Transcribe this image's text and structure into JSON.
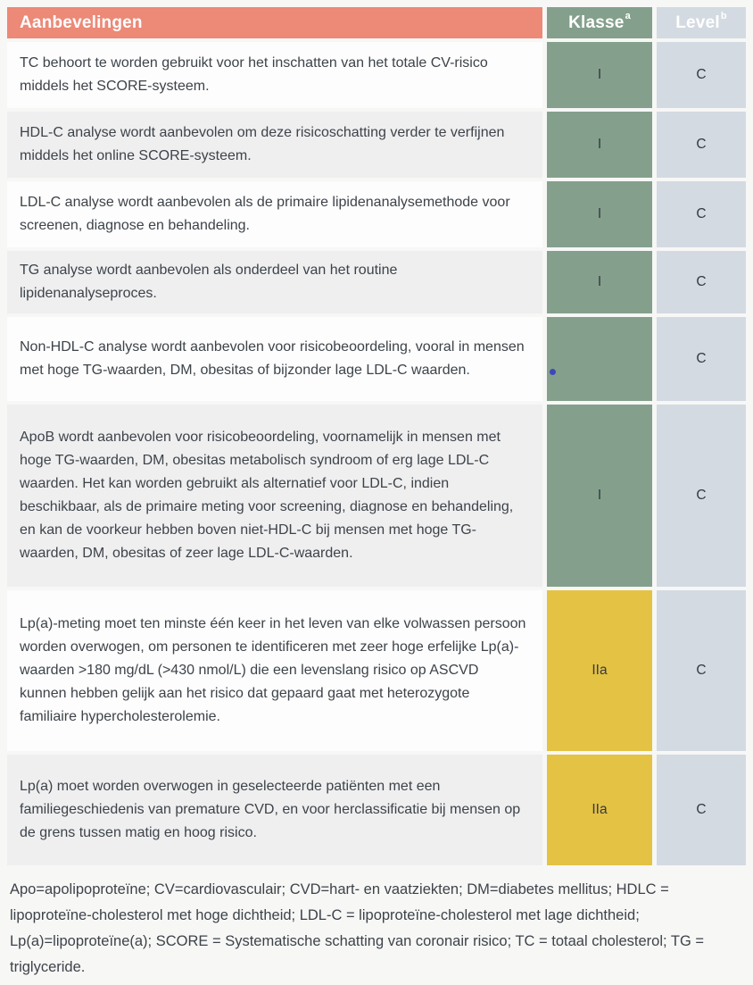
{
  "table": {
    "header": {
      "recommendations_label": "Aanbevelingen",
      "class_label": "Klasse",
      "class_footnote_mark": "a",
      "level_label": "Level",
      "level_footnote_mark": "b"
    },
    "rows": [
      {
        "text": "TC behoort te worden gebruikt voor het inschatten van het totale CV-risico middels het SCORE-systeem.",
        "klasse": "I",
        "level": "C",
        "klasse_color": "green",
        "has_blue_dot": false
      },
      {
        "text": "HDL-C analyse wordt aanbevolen om deze risicoschatting verder te verfijnen middels het online SCORE-systeem.",
        "klasse": "I",
        "level": "C",
        "klasse_color": "green",
        "has_blue_dot": false
      },
      {
        "text": "LDL-C analyse wordt aanbevolen als de primaire lipidenanalysemethode voor screenen, diagnose en behandeling.",
        "klasse": "I",
        "level": "C",
        "klasse_color": "green",
        "has_blue_dot": false
      },
      {
        "text": "TG analyse wordt aanbevolen als onderdeel van het routine lipidenanalyseproces.",
        "klasse": "I",
        "level": "C",
        "klasse_color": "green",
        "has_blue_dot": false
      },
      {
        "text": "Non-HDL-C analyse wordt aanbevolen voor risicobeoordeling, vooral in mensen met hoge TG-waarden, DM, obesitas of bijzonder lage LDL-C waarden.",
        "klasse": "",
        "level": "C",
        "klasse_color": "green",
        "has_blue_dot": true
      },
      {
        "text": "ApoB wordt aanbevolen voor risicobeoordeling, voornamelijk in mensen met hoge TG-waarden, DM, obesitas metabolisch syndroom of erg lage LDL-C waarden. Het kan worden gebruikt als alternatief voor LDL-C, indien beschikbaar, als de primaire meting voor screening, diagnose en behandeling, en kan de voorkeur hebben boven niet-HDL-C bij mensen met hoge TG-waarden, DM, obesitas of zeer lage LDL-C-waarden.",
        "klasse": "I",
        "level": "C",
        "klasse_color": "green",
        "has_blue_dot": false
      },
      {
        "text": "Lp(a)-meting moet ten minste één keer in het leven van elke volwassen persoon worden overwogen, om personen te identificeren met zeer hoge erfelijke Lp(a)-waarden >180 mg/dL (>430 nmol/L) die een levenslang risico op ASCVD kunnen hebben gelijk aan het risico dat gepaard gaat met heterozygote familiaire hypercholesterolemie.",
        "klasse": "IIa",
        "level": "C",
        "klasse_color": "yellow",
        "has_blue_dot": false
      },
      {
        "text": "Lp(a) moet worden overwogen in geselecteerde patiënten met een familiegeschiedenis van premature CVD, en voor herclassificatie bij mensen op de grens tussen matig en hoog risico.",
        "klasse": "IIa",
        "level": "C",
        "klasse_color": "yellow",
        "has_blue_dot": false
      }
    ],
    "footnote": "Apo=apolipoproteïne; CV=cardiovasculair; CVD=hart- en vaatziekten; DM=diabetes mellitus; HDLC = lipoproteïne-cholesterol met hoge dichtheid; LDL-C = lipoproteïne-cholesterol met lage dichtheid; Lp(a)=lipoproteïne(a); SCORE = Systematische schatting van coronair risico; TC = totaal cholesterol; TG = triglyceride."
  },
  "colors": {
    "page_bg": "#f7f7f6",
    "header_accent": "#ec8977",
    "class_green": "#84a08c",
    "class_yellow": "#e4c243",
    "level_cell": "#d3dae2",
    "row_even": "#fdfdfd",
    "row_odd": "#efeff0",
    "text": "#3d4349",
    "blue_dot": "#3d48b8"
  }
}
